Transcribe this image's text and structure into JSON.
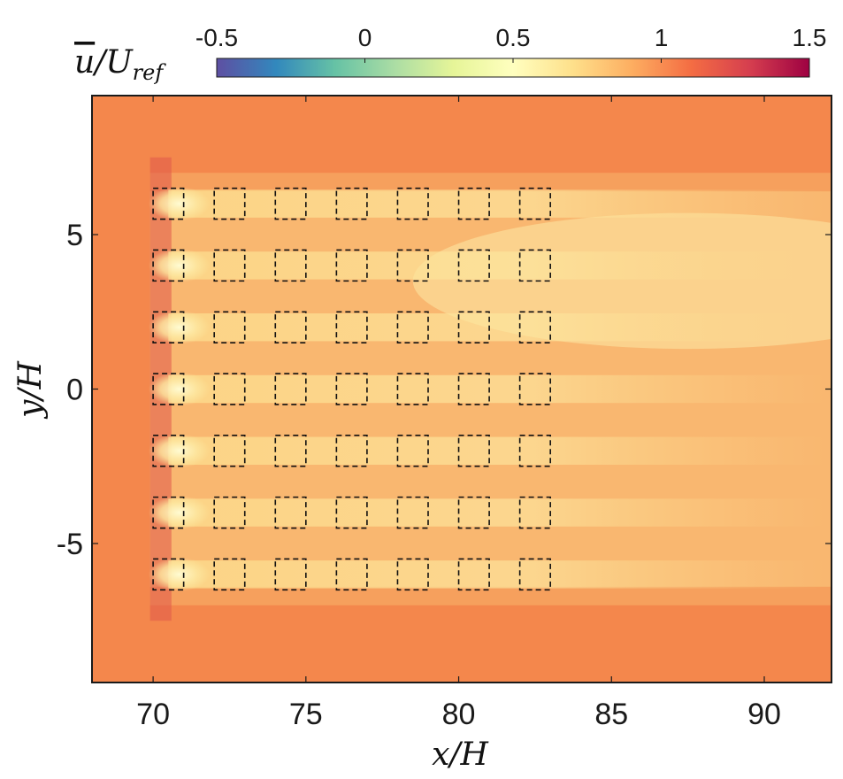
{
  "chart_data": {
    "type": "heatmap",
    "title": "",
    "xlabel": "x/H",
    "ylabel": "y/H",
    "xlim": [
      68,
      92.2
    ],
    "ylim": [
      -9.5,
      9.5
    ],
    "x_ticks": [
      70,
      75,
      80,
      85,
      90
    ],
    "x_tick_labels": [
      "70",
      "75",
      "80",
      "85",
      "90"
    ],
    "y_ticks": [
      5,
      0,
      -5
    ],
    "y_tick_labels": [
      "5",
      "0",
      "-5"
    ],
    "colorbar": {
      "label": "ū/U_ref",
      "range": [
        -0.5,
        1.5
      ],
      "ticks": [
        -0.5,
        0,
        0.5,
        1,
        1.5
      ],
      "tick_labels": [
        "-0.5",
        "0",
        "0.5",
        "1",
        "1.5"
      ],
      "colormap": "Spectral_r",
      "colors": [
        "#5e4fa2",
        "#3288bd",
        "#66c2a5",
        "#abdda4",
        "#e6f598",
        "#ffffbf",
        "#fee08b",
        "#fdae61",
        "#f46d43",
        "#d53e4f",
        "#9e0142"
      ]
    },
    "freestream_value": 1.1,
    "wake_value": 0.7,
    "obstacles": {
      "style": "dashed-square",
      "size": 1.0,
      "x_centers": [
        70.5,
        72.5,
        74.5,
        76.5,
        78.5,
        80.5,
        82.5
      ],
      "y_centers": [
        6,
        4,
        2,
        0,
        -2,
        -4,
        -6
      ]
    }
  }
}
